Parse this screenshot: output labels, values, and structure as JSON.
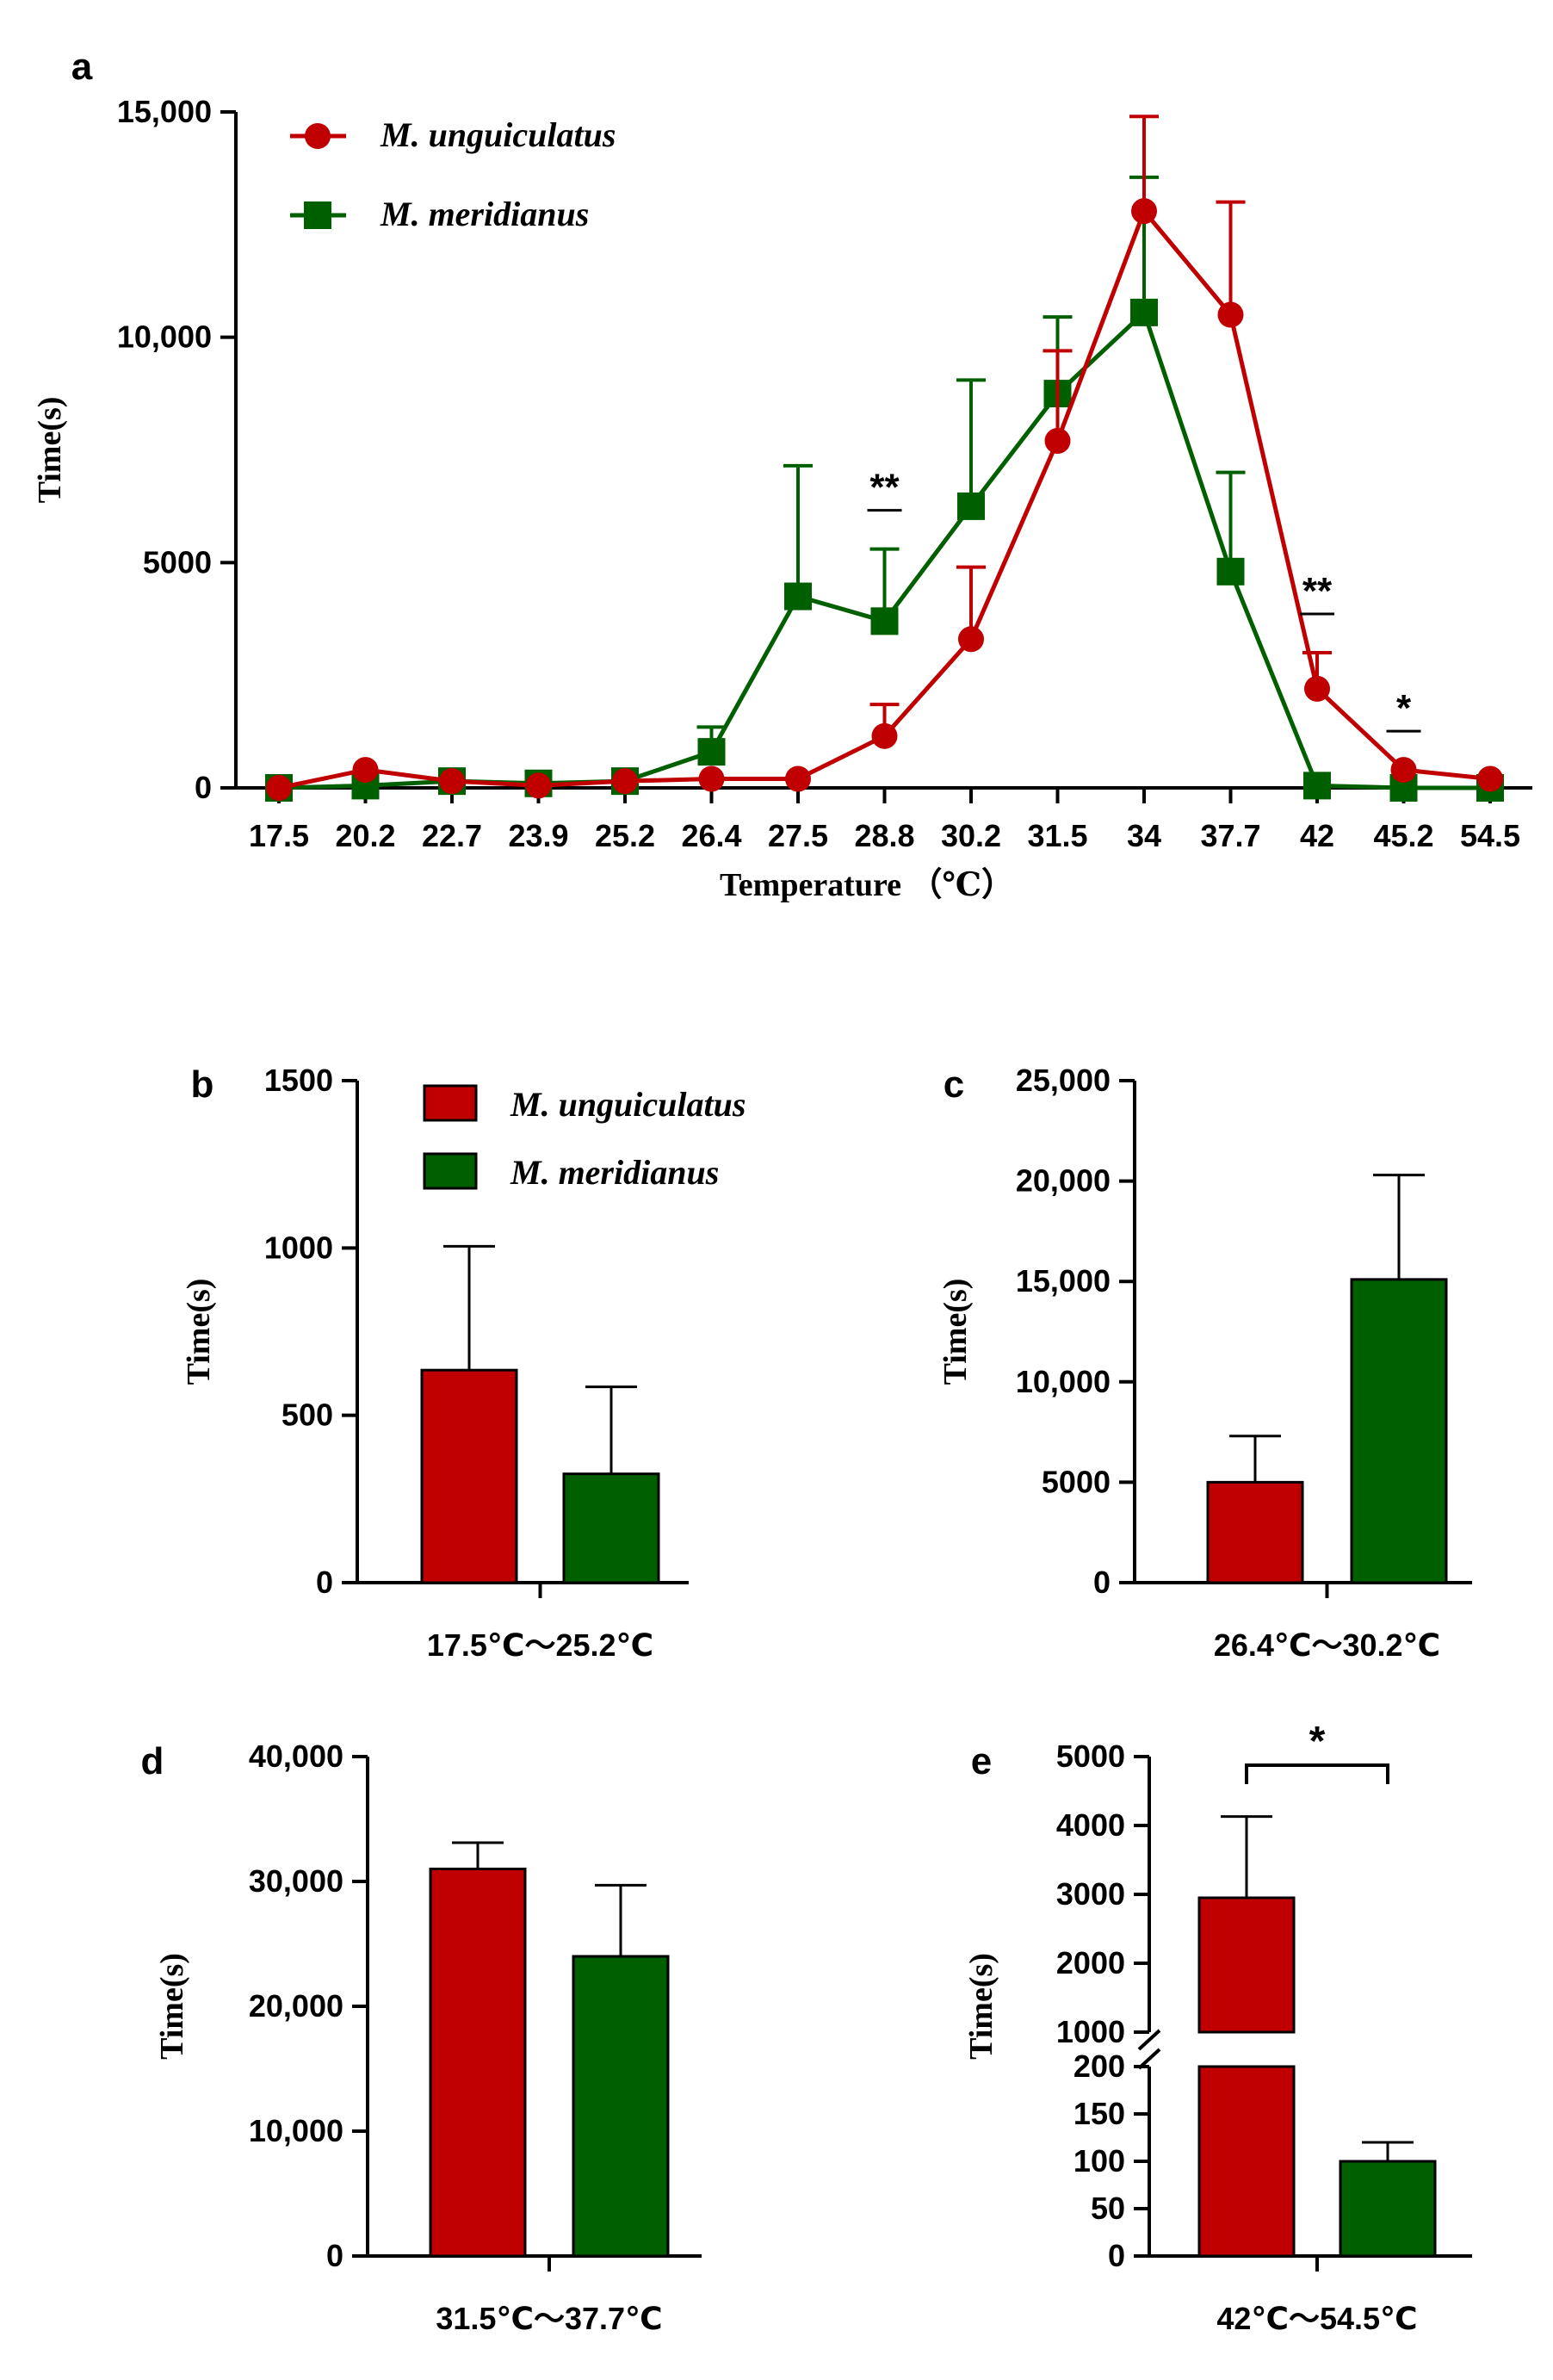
{
  "colors": {
    "red": "#c00000",
    "green": "#006000",
    "axis": "#000000"
  },
  "chart_data": [
    {
      "panel": "a",
      "type": "line",
      "xlabel": "Temperature （℃）",
      "ylabel": "Time(s)",
      "categories": [
        "17.5",
        "20.2",
        "22.7",
        "23.9",
        "25.2",
        "26.4",
        "27.5",
        "28.8",
        "30.2",
        "31.5",
        "34",
        "37.7",
        "42",
        "45.2",
        "54.5"
      ],
      "ylim": [
        0,
        15000
      ],
      "yticks": [
        0,
        5000,
        10000,
        15000
      ],
      "ytick_labels": [
        "0",
        "5000",
        "10,000",
        "15,000"
      ],
      "legend_position": "top-left",
      "series": [
        {
          "name": "M. unguiculatus",
          "color": "#c00000",
          "marker": "circle",
          "values": [
            0,
            400,
            150,
            50,
            150,
            200,
            200,
            1150,
            3300,
            7700,
            12800,
            10500,
            2200,
            400,
            200
          ],
          "errors": [
            0,
            0,
            0,
            0,
            0,
            0,
            0,
            700,
            1600,
            2000,
            2100,
            2500,
            800,
            0,
            0
          ]
        },
        {
          "name": "M. meridianus",
          "color": "#006000",
          "marker": "square",
          "values": [
            0,
            50,
            150,
            100,
            150,
            800,
            4250,
            3700,
            6250,
            8750,
            10550,
            4800,
            50,
            0,
            0
          ],
          "errors": [
            0,
            0,
            0,
            0,
            0,
            550,
            2900,
            1600,
            2800,
            1700,
            3000,
            2200,
            0,
            0,
            0
          ]
        }
      ],
      "significance": [
        {
          "category": "28.8",
          "label": "**"
        },
        {
          "category": "42",
          "label": "**"
        },
        {
          "category": "45.2",
          "label": "*"
        }
      ]
    },
    {
      "panel": "b",
      "type": "bar",
      "ylabel": "Time(s)",
      "categories": [
        "M. unguiculatus",
        "M. meridianus"
      ],
      "xlabel": "17.5℃～25.2℃",
      "values": [
        635,
        325
      ],
      "errors": [
        370,
        260
      ],
      "ylim": [
        0,
        1500
      ],
      "yticks": [
        0,
        500,
        1000,
        1500
      ],
      "ytick_labels": [
        "0",
        "500",
        "1000",
        "1500"
      ],
      "legend_position": "top-right"
    },
    {
      "panel": "c",
      "type": "bar",
      "ylabel": "Time(s)",
      "categories": [
        "M. unguiculatus",
        "M. meridianus"
      ],
      "xlabel": "26.4℃～30.2℃",
      "values": [
        5000,
        15100
      ],
      "errors": [
        2300,
        5200
      ],
      "ylim": [
        0,
        25000
      ],
      "yticks": [
        0,
        5000,
        10000,
        15000,
        20000,
        25000
      ],
      "ytick_labels": [
        "0",
        "5000",
        "10,000",
        "15,000",
        "20,000",
        "25,000"
      ]
    },
    {
      "panel": "d",
      "type": "bar",
      "ylabel": "Time(s)",
      "categories": [
        "M. unguiculatus",
        "M. meridianus"
      ],
      "xlabel": "31.5℃～37.7℃",
      "values": [
        31000,
        24000
      ],
      "errors": [
        2100,
        5700
      ],
      "ylim": [
        0,
        40000
      ],
      "yticks": [
        0,
        10000,
        20000,
        30000,
        40000
      ],
      "ytick_labels": [
        "0",
        "10,000",
        "20,000",
        "30,000",
        "40,000"
      ]
    },
    {
      "panel": "e",
      "type": "bar",
      "ylabel": "Time(s)",
      "categories": [
        "M. unguiculatus",
        "M. meridianus"
      ],
      "xlabel": "42℃～54.5℃",
      "values": [
        2950,
        100
      ],
      "errors": [
        1180,
        20
      ],
      "ylim": [
        0,
        5000
      ],
      "axis_break": [
        200,
        1000
      ],
      "yticks_lower": [
        0,
        50,
        100,
        150,
        200
      ],
      "ytick_labels_lower": [
        "0",
        "50",
        "100",
        "150",
        "200"
      ],
      "yticks_upper": [
        1000,
        2000,
        3000,
        4000,
        5000
      ],
      "ytick_labels_upper": [
        "1000",
        "2000",
        "3000",
        "4000",
        "5000"
      ],
      "significance": "*"
    }
  ]
}
